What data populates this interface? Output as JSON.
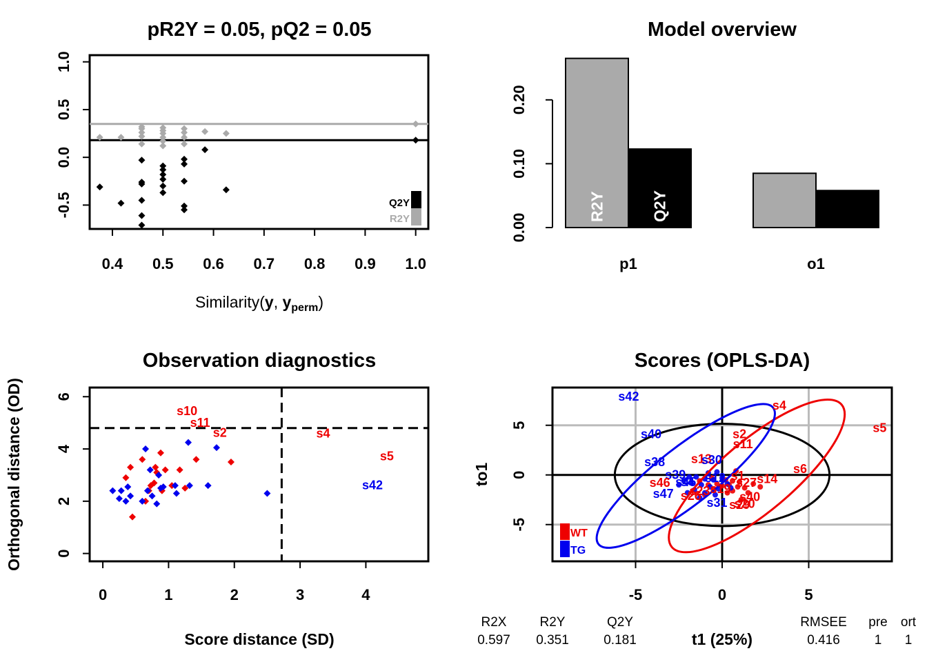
{
  "colors": {
    "r2y": "#aaaaaa",
    "q2y": "#000000",
    "wt": "#ee0000",
    "tg": "#0000ee",
    "grid": "#bbbbbb",
    "frame": "#000000"
  },
  "chart_data": [
    {
      "id": "permutation",
      "type": "scatter",
      "title": "pR2Y = 0.05, pQ2 = 0.05",
      "xlabel": "Similarity(",
      "xlabel_y": "y",
      "xlabel_comma": ", ",
      "xlabel_y2": "y",
      "xlabel_sub": "perm",
      "xlabel_close": ")",
      "xlim": [
        0.355,
        1.025
      ],
      "ylim": [
        -0.75,
        1.07
      ],
      "xticks": [
        0.4,
        0.5,
        0.6,
        0.7,
        0.8,
        0.9,
        1.0
      ],
      "xtick_labels": [
        "0.4",
        "0.5",
        "0.6",
        "0.7",
        "0.8",
        "0.9",
        "1.0"
      ],
      "yticks": [
        -0.5,
        0.0,
        0.5,
        1.0
      ],
      "ytick_labels": [
        "-0.5",
        "0.0",
        "0.5",
        "1.0"
      ],
      "hlines": [
        {
          "name": "R2Y",
          "y": 0.35
        },
        {
          "name": "Q2Y",
          "y": 0.18
        }
      ],
      "legend": [
        "Q2Y",
        "R2Y"
      ],
      "legend_position": "bottom-right",
      "series": [
        {
          "name": "R2Y",
          "points": [
            [
              0.375,
              0.21
            ],
            [
              0.417,
              0.21
            ],
            [
              0.458,
              0.14
            ],
            [
              0.458,
              0.22
            ],
            [
              0.458,
              0.26
            ],
            [
              0.458,
              0.3
            ],
            [
              0.458,
              0.32
            ],
            [
              0.5,
              0.12
            ],
            [
              0.5,
              0.17
            ],
            [
              0.5,
              0.21
            ],
            [
              0.5,
              0.25
            ],
            [
              0.5,
              0.28
            ],
            [
              0.5,
              0.31
            ],
            [
              0.542,
              0.14
            ],
            [
              0.542,
              0.21
            ],
            [
              0.542,
              0.26
            ],
            [
              0.542,
              0.3
            ],
            [
              0.583,
              0.27
            ],
            [
              0.625,
              0.25
            ],
            [
              1.0,
              0.35
            ]
          ]
        },
        {
          "name": "Q2Y",
          "points": [
            [
              0.375,
              -0.31
            ],
            [
              0.417,
              -0.48
            ],
            [
              0.458,
              -0.03
            ],
            [
              0.458,
              -0.26
            ],
            [
              0.458,
              -0.28
            ],
            [
              0.458,
              -0.45
            ],
            [
              0.458,
              -0.61
            ],
            [
              0.458,
              -0.71
            ],
            [
              0.5,
              -0.09
            ],
            [
              0.5,
              -0.13
            ],
            [
              0.5,
              -0.18
            ],
            [
              0.5,
              -0.23
            ],
            [
              0.5,
              -0.3
            ],
            [
              0.5,
              -0.37
            ],
            [
              0.542,
              -0.02
            ],
            [
              0.542,
              -0.07
            ],
            [
              0.542,
              -0.25
            ],
            [
              0.542,
              -0.51
            ],
            [
              0.542,
              -0.55
            ],
            [
              0.583,
              0.08
            ],
            [
              0.625,
              -0.34
            ],
            [
              1.0,
              0.18
            ]
          ]
        }
      ]
    },
    {
      "id": "overview",
      "type": "bar",
      "title": "Model overview",
      "categories": [
        "p1",
        "o1"
      ],
      "series": [
        {
          "name": "R2Y",
          "values": [
            0.265,
            0.085
          ]
        },
        {
          "name": "Q2Y",
          "values": [
            0.123,
            0.058
          ]
        }
      ],
      "bar_labels": [
        "R2Y",
        "Q2Y"
      ],
      "ylim": [
        0,
        0.27
      ],
      "yticks": [
        0.0,
        0.1,
        0.2
      ],
      "ytick_labels": [
        "0.00",
        "0.10",
        "0.20"
      ]
    },
    {
      "id": "diagnostics",
      "type": "scatter",
      "title": "Observation diagnostics",
      "xlabel": "Score distance (SD)",
      "ylabel": "Orthogonal distance (OD)",
      "xlim": [
        -0.2,
        4.95
      ],
      "ylim": [
        -0.3,
        6.35
      ],
      "xticks": [
        0,
        1,
        2,
        3,
        4
      ],
      "xtick_labels": [
        "0",
        "1",
        "2",
        "3",
        "4"
      ],
      "yticks": [
        0,
        2,
        4,
        6
      ],
      "ytick_labels": [
        "0",
        "2",
        "4",
        "6"
      ],
      "vline": 2.72,
      "hline": 4.8,
      "series": [
        {
          "name": "WT",
          "points": [
            [
              0.35,
              2.9
            ],
            [
              0.42,
              3.3
            ],
            [
              0.45,
              1.4
            ],
            [
              0.6,
              3.6
            ],
            [
              0.65,
              2.0
            ],
            [
              0.7,
              2.4
            ],
            [
              0.73,
              2.6
            ],
            [
              0.78,
              2.7
            ],
            [
              0.8,
              3.3
            ],
            [
              0.82,
              3.1
            ],
            [
              0.88,
              3.85
            ],
            [
              0.9,
              2.4
            ],
            [
              0.95,
              3.2
            ],
            [
              1.05,
              2.6
            ],
            [
              1.17,
              3.2
            ],
            [
              1.25,
              2.5
            ],
            [
              1.42,
              3.6
            ],
            [
              1.95,
              3.5
            ]
          ]
        },
        {
          "name": "TG",
          "points": [
            [
              0.15,
              2.4
            ],
            [
              0.25,
              2.1
            ],
            [
              0.28,
              2.4
            ],
            [
              0.35,
              2.0
            ],
            [
              0.38,
              2.55
            ],
            [
              0.42,
              2.2
            ],
            [
              0.6,
              2.0
            ],
            [
              0.65,
              4.0
            ],
            [
              0.68,
              2.4
            ],
            [
              0.72,
              3.2
            ],
            [
              0.75,
              2.2
            ],
            [
              0.82,
              1.9
            ],
            [
              0.85,
              3.0
            ],
            [
              0.88,
              2.5
            ],
            [
              0.92,
              2.55
            ],
            [
              1.1,
              2.6
            ],
            [
              1.12,
              2.3
            ],
            [
              1.3,
              4.25
            ],
            [
              1.32,
              2.6
            ],
            [
              1.6,
              2.6
            ],
            [
              1.73,
              4.05
            ],
            [
              2.5,
              2.3
            ]
          ]
        }
      ],
      "labels": [
        {
          "text": "s10",
          "x": 1.28,
          "y": 5.45,
          "group": "WT"
        },
        {
          "text": "s11",
          "x": 1.48,
          "y": 5.0,
          "group": "WT"
        },
        {
          "text": "s2",
          "x": 1.78,
          "y": 4.62,
          "group": "WT"
        },
        {
          "text": "s4",
          "x": 3.35,
          "y": 4.6,
          "group": "WT"
        },
        {
          "text": "s5",
          "x": 4.32,
          "y": 3.72,
          "group": "WT"
        },
        {
          "text": "s42",
          "x": 4.1,
          "y": 2.62,
          "group": "TG"
        }
      ]
    },
    {
      "id": "scores",
      "type": "scatter",
      "title": "Scores (OPLS-DA)",
      "xlabel": "t1 (25%)",
      "ylabel": "to1",
      "xlim": [
        -9.8,
        9.8
      ],
      "ylim": [
        -8.7,
        8.8
      ],
      "xticks": [
        -5,
        0,
        5
      ],
      "xtick_labels": [
        "-5",
        "0",
        "5"
      ],
      "yticks": [
        -5,
        0,
        5
      ],
      "ytick_labels": [
        "-5",
        "0",
        "5"
      ],
      "grid": true,
      "legend": [
        "WT",
        "TG"
      ],
      "legend_position": "bottom-left",
      "labels": [
        {
          "text": "s42",
          "x": -5.4,
          "y": 7.9,
          "group": "TG"
        },
        {
          "text": "s4",
          "x": 3.3,
          "y": 7.0,
          "group": "WT"
        },
        {
          "text": "s5",
          "x": 9.1,
          "y": 4.75,
          "group": "WT"
        },
        {
          "text": "s40",
          "x": -4.1,
          "y": 4.1,
          "group": "TG"
        },
        {
          "text": "s2",
          "x": 1.0,
          "y": 4.1,
          "group": "WT"
        },
        {
          "text": "s11",
          "x": 1.2,
          "y": 3.1,
          "group": "WT"
        },
        {
          "text": "s38",
          "x": -3.9,
          "y": 1.3,
          "group": "TG"
        },
        {
          "text": "s13",
          "x": -1.2,
          "y": 1.6,
          "group": "WT"
        },
        {
          "text": "s30",
          "x": -0.6,
          "y": 1.5,
          "group": "TG"
        },
        {
          "text": "s6",
          "x": 4.5,
          "y": 0.6,
          "group": "WT"
        },
        {
          "text": "s1",
          "x": 0.9,
          "y": -0.1,
          "group": "WT"
        },
        {
          "text": "s14",
          "x": 2.6,
          "y": -0.4,
          "group": "WT"
        },
        {
          "text": "s39",
          "x": -2.7,
          "y": 0.0,
          "group": "TG"
        },
        {
          "text": "s12",
          "x": -0.4,
          "y": -0.3,
          "group": "TG"
        },
        {
          "text": "s4",
          "x": -2.0,
          "y": -0.7,
          "group": "TG"
        },
        {
          "text": "s46",
          "x": -3.6,
          "y": -0.8,
          "group": "WT"
        },
        {
          "text": "s45",
          "x": -2.1,
          "y": -0.7,
          "group": "TG"
        },
        {
          "text": "s27",
          "x": 1.4,
          "y": -0.8,
          "group": "WT"
        },
        {
          "text": "s19",
          "x": -0.1,
          "y": -1.4,
          "group": "WT"
        },
        {
          "text": "s47",
          "x": -3.4,
          "y": -1.9,
          "group": "TG"
        },
        {
          "text": "s23",
          "x": -1.3,
          "y": -1.6,
          "group": "WT"
        },
        {
          "text": "s26",
          "x": -1.8,
          "y": -2.1,
          "group": "WT"
        },
        {
          "text": "s40",
          "x": 1.6,
          "y": -2.2,
          "group": "WT"
        },
        {
          "text": "s31",
          "x": -0.3,
          "y": -2.8,
          "group": "TG"
        },
        {
          "text": "s20",
          "x": 1.3,
          "y": -2.9,
          "group": "WT"
        },
        {
          "text": "s29",
          "x": 1.0,
          "y": -3.0,
          "group": "WT"
        }
      ],
      "cloud": {
        "WT": [
          [
            -0.6,
            -0.3
          ],
          [
            0.2,
            -0.5
          ],
          [
            0.6,
            -0.6
          ],
          [
            1.0,
            -0.7
          ],
          [
            -0.3,
            -0.9
          ],
          [
            0.4,
            -1.0
          ],
          [
            0.9,
            -1.2
          ],
          [
            1.3,
            -1.3
          ],
          [
            -0.8,
            -1.0
          ],
          [
            0.0,
            -1.1
          ],
          [
            0.6,
            -1.6
          ],
          [
            1.5,
            -1.8
          ],
          [
            -1.3,
            -0.6
          ],
          [
            -0.5,
            -1.5
          ],
          [
            0.3,
            -1.8
          ],
          [
            1.8,
            -0.9
          ],
          [
            2.2,
            -1.2
          ],
          [
            0.8,
            0.4
          ],
          [
            -1.0,
            -2.0
          ],
          [
            1.1,
            -2.5
          ]
        ],
        "TG": [
          [
            -1.5,
            -0.2
          ],
          [
            -1.0,
            -0.4
          ],
          [
            -0.5,
            -0.5
          ],
          [
            0.0,
            -0.3
          ],
          [
            -1.8,
            -0.8
          ],
          [
            -1.2,
            -1.0
          ],
          [
            -0.7,
            -1.2
          ],
          [
            -0.2,
            -1.4
          ],
          [
            -2.2,
            -0.5
          ],
          [
            -1.6,
            -1.5
          ],
          [
            -1.0,
            -1.8
          ],
          [
            -0.4,
            -2.0
          ],
          [
            -2.5,
            -1.0
          ],
          [
            -1.9,
            -0.2
          ],
          [
            -0.8,
            0.2
          ],
          [
            0.3,
            -0.9
          ],
          [
            -1.3,
            -2.3
          ],
          [
            -2.0,
            -1.8
          ],
          [
            -0.3,
            0.3
          ],
          [
            0.5,
            -1.3
          ]
        ]
      },
      "ellipses": [
        {
          "group": "all",
          "cx": 0.0,
          "cy": 0.0,
          "rx": 6.2,
          "ry": 5.15,
          "angle": 0
        },
        {
          "group": "WT",
          "cx": 2.0,
          "cy": -0.1,
          "rx": 6.4,
          "ry": 3.6,
          "angle": -40
        },
        {
          "group": "TG",
          "cx": -2.1,
          "cy": -0.1,
          "rx": 6.4,
          "ry": 2.9,
          "angle": -38
        }
      ]
    }
  ],
  "summary": {
    "headers": [
      "R2X",
      "R2Y",
      "Q2Y",
      "RMSEE",
      "pre",
      "ort"
    ],
    "values": [
      "0.597",
      "0.351",
      "0.181",
      "0.416",
      "1",
      "1"
    ]
  }
}
